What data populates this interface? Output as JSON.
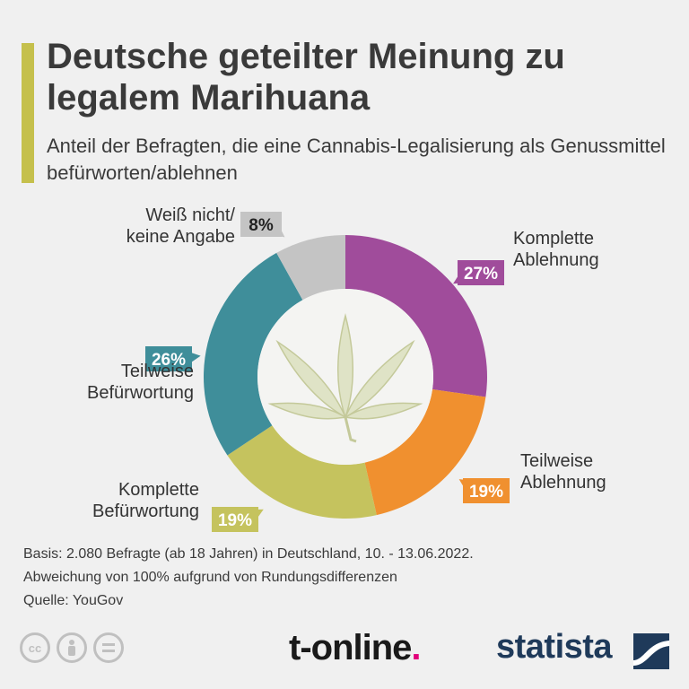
{
  "title": "Deutsche geteilter Meinung zu legalem Marihuana",
  "subtitle": "Anteil der Befragten, die eine Cannabis-Legalisierung als Genussmittel befürworten/ablehnen",
  "colors": {
    "accent": "#c5c04c",
    "komplette_ablehnung": "#a04c9b",
    "teilweise_ablehnung": "#f0902f",
    "komplette_befuerwortung": "#c5c35e",
    "teilweise_befuerwortung": "#3f8e9a",
    "weiss_nicht": "#c4c4c4"
  },
  "chart_data": {
    "type": "pie",
    "variant": "donut",
    "slices": [
      {
        "label_lines": [
          "Komplette",
          "Ablehnung"
        ],
        "value": 27,
        "value_label": "27%",
        "color": "#a04c9b"
      },
      {
        "label_lines": [
          "Teilweise",
          "Ablehnung"
        ],
        "value": 19,
        "value_label": "19%",
        "color": "#f0902f"
      },
      {
        "label_lines": [
          "Komplette",
          "Befürwortung"
        ],
        "value": 19,
        "value_label": "19%",
        "color": "#c5c35e"
      },
      {
        "label_lines": [
          "Teilweise",
          "Befürwortung"
        ],
        "value": 26,
        "value_label": "26%",
        "color": "#3f8e9a"
      },
      {
        "label_lines": [
          "Weiß nicht/",
          "keine Angabe"
        ],
        "value": 8,
        "value_label": "8%",
        "color": "#c4c4c4"
      }
    ],
    "center_icon": "cannabis-leaf-icon"
  },
  "footer": {
    "basis": "Basis: 2.080 Befragte (ab 18 Jahren) in Deutschland, 10. - 13.06.2022.",
    "note": "Abweichung von 100% aufgrund von Rundungsdifferenzen",
    "source": "Quelle: YouGov"
  },
  "license_icons": [
    "cc-icon",
    "attribution-icon",
    "no-derivatives-icon"
  ],
  "brands": {
    "tonline": "t-online",
    "tonline_dot": ".",
    "statista": "statista"
  }
}
